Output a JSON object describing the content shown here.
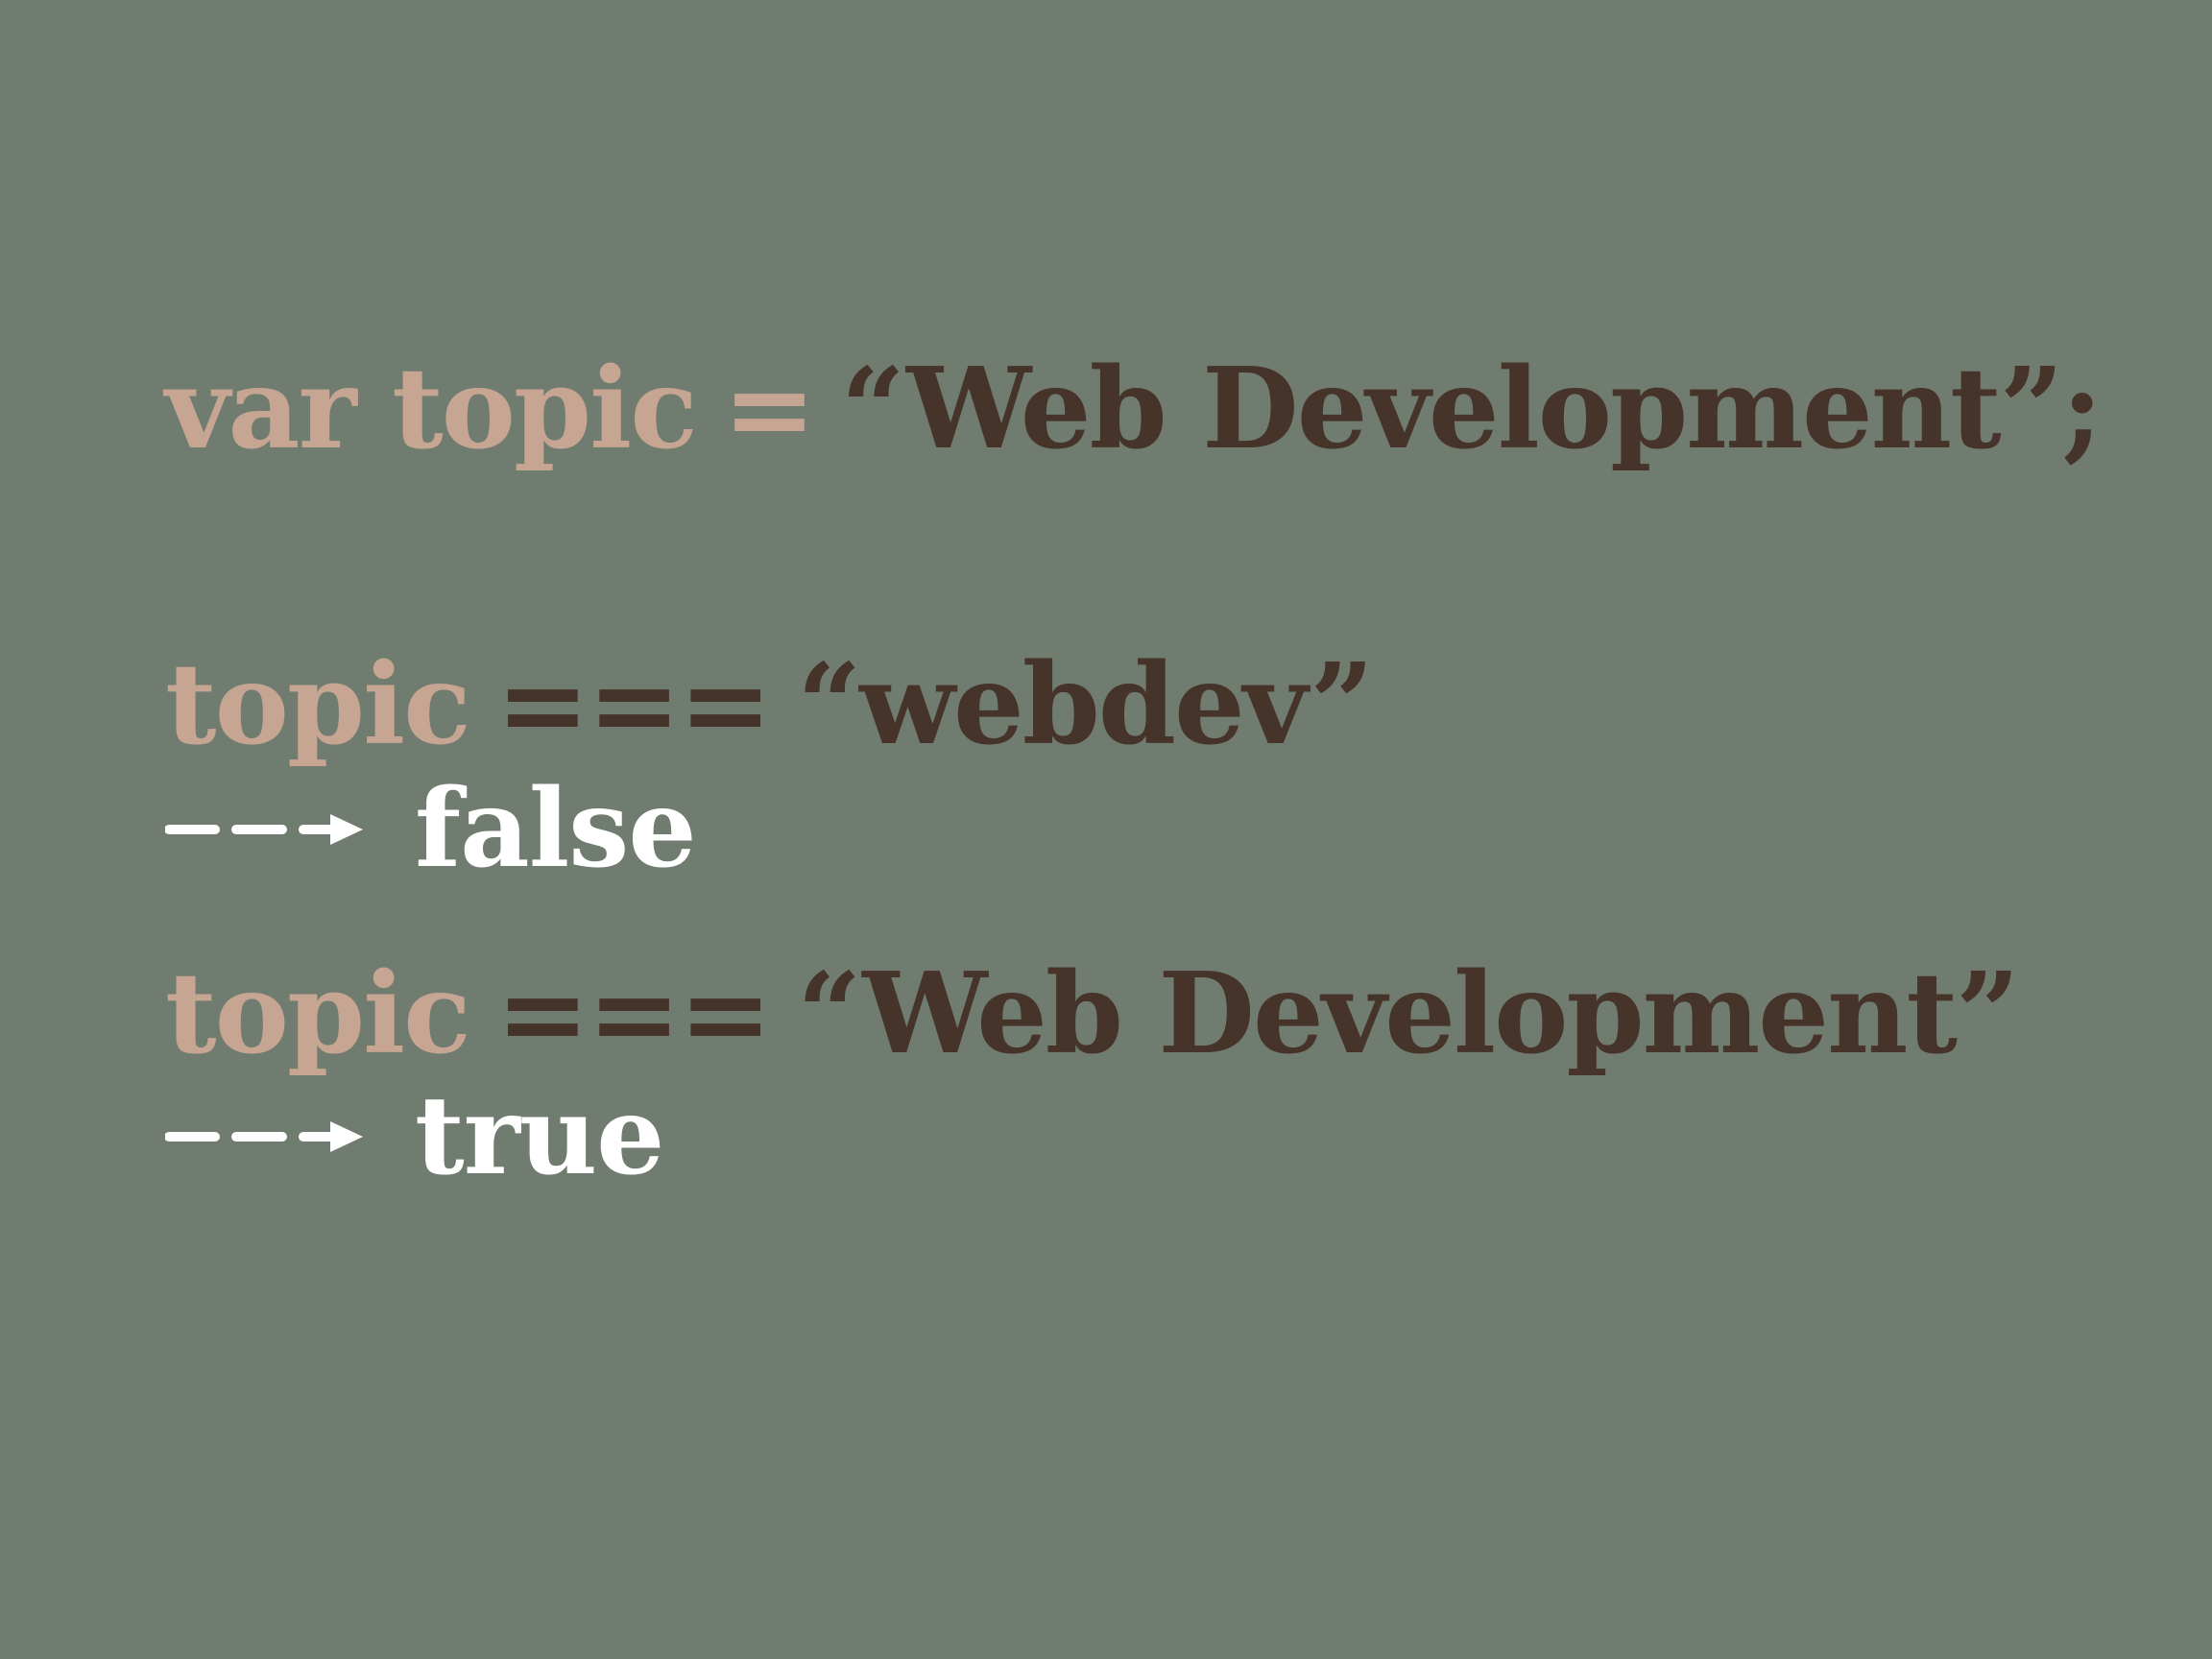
{
  "slide": {
    "line1": {
      "keyword": "var topic",
      "assign": "=",
      "string": "“Web Development”;"
    },
    "line2": {
      "identifier": "topic",
      "operator": "===",
      "string": "“webdev”"
    },
    "result1": "false",
    "line3": {
      "identifier": "topic",
      "operator": "===",
      "string": "“Web Development”"
    },
    "result2": "true"
  },
  "colors": {
    "background": "#707c6f",
    "light": "#c6a592",
    "dark": "#46332a",
    "result": "#ffffff"
  },
  "icons": {
    "result_arrow": "dashed-arrow-icon"
  }
}
